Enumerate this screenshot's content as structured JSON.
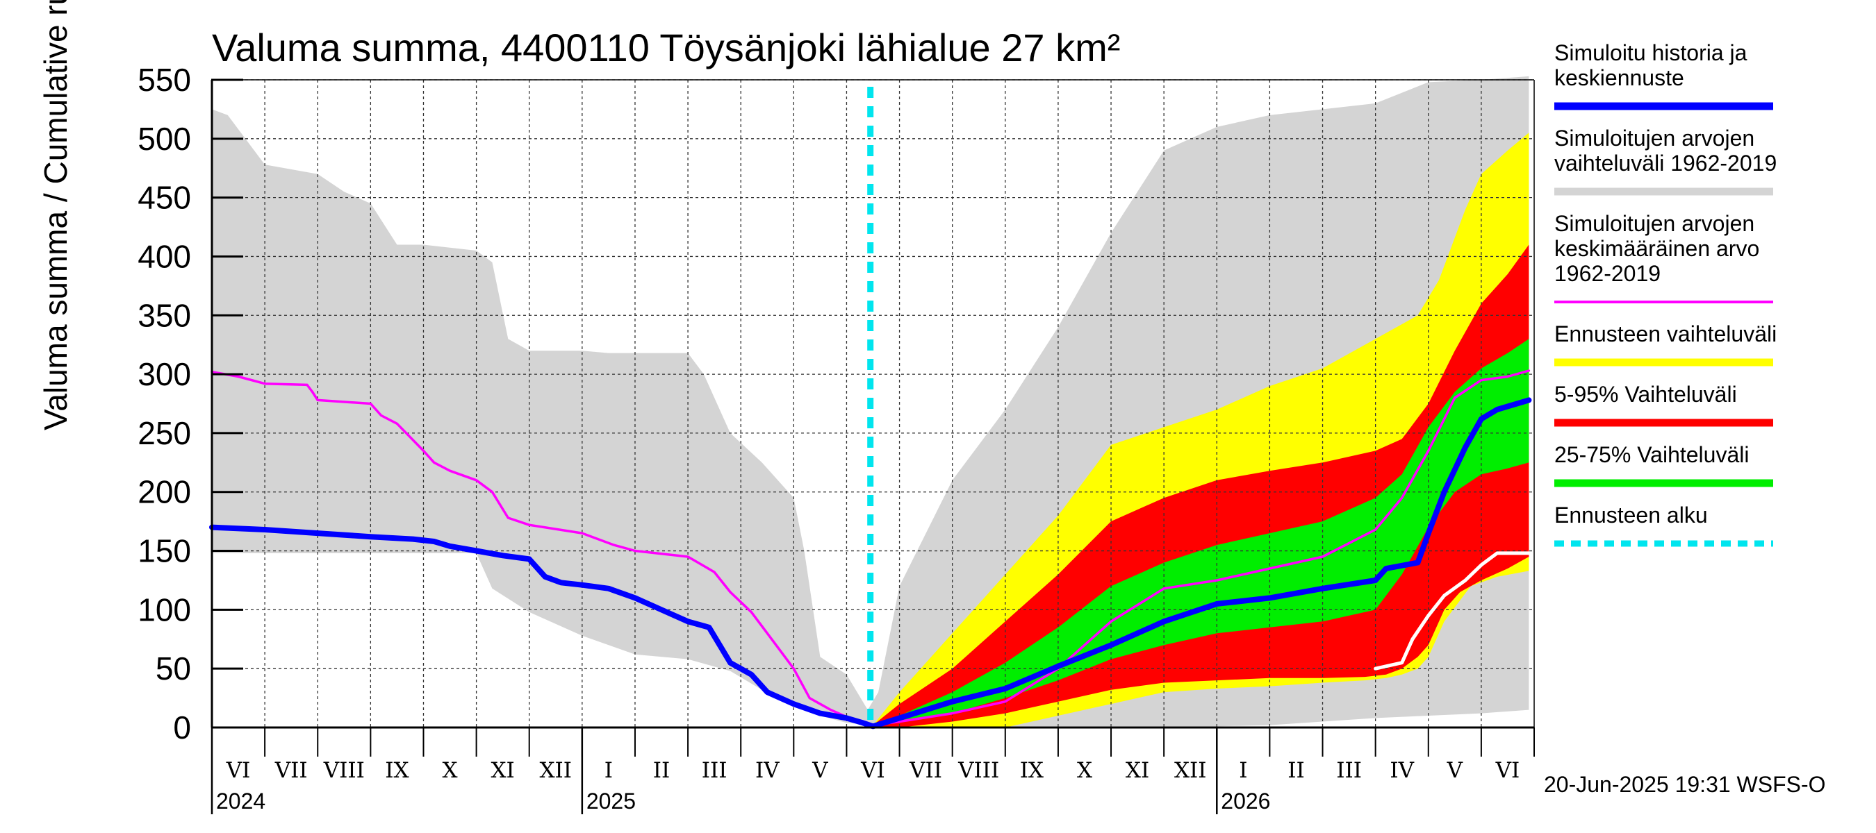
{
  "chart_data": {
    "type": "area",
    "title": "Valuma summa, 4400110 Töysänjoki lähialue 27 km²",
    "ylabel": "Valuma summa / Cumulative runoff    mm",
    "ylim": [
      0,
      550
    ],
    "yticks": [
      0,
      50,
      100,
      150,
      200,
      250,
      300,
      350,
      400,
      450,
      500,
      550
    ],
    "grid": true,
    "months": [
      "VI",
      "VII",
      "VIII",
      "IX",
      "X",
      "XI",
      "XII",
      "I",
      "II",
      "III",
      "IV",
      "V",
      "VI",
      "VII",
      "VIII",
      "IX",
      "X",
      "XI",
      "XII",
      "I",
      "II",
      "III",
      "IV",
      "V",
      "VI"
    ],
    "years": [
      {
        "label": "2024",
        "month_index": 0
      },
      {
        "label": "2025",
        "month_index": 7
      },
      {
        "label": "2026",
        "month_index": 19
      }
    ],
    "forecast_start": 12.45,
    "series": [
      {
        "name": "Simuloitujen arvojen vaihteluväli 1962-2019",
        "kind": "band",
        "color": "#d4d4d4",
        "upper": [
          [
            0,
            525
          ],
          [
            0.3,
            520
          ],
          [
            1,
            478
          ],
          [
            2,
            470
          ],
          [
            2.5,
            455
          ],
          [
            3,
            445
          ],
          [
            3.5,
            410
          ],
          [
            4,
            410
          ],
          [
            5,
            405
          ],
          [
            5.3,
            395
          ],
          [
            5.6,
            330
          ],
          [
            6,
            320
          ],
          [
            7,
            320
          ],
          [
            7.5,
            318
          ],
          [
            8,
            318
          ],
          [
            9,
            318
          ],
          [
            9.3,
            300
          ],
          [
            9.8,
            250
          ],
          [
            10.4,
            225
          ],
          [
            11,
            195
          ],
          [
            11.2,
            150
          ],
          [
            11.5,
            60
          ],
          [
            12,
            45
          ],
          [
            12.4,
            15
          ],
          [
            12.6,
            30
          ],
          [
            13,
            120
          ],
          [
            14,
            210
          ],
          [
            15,
            270
          ],
          [
            16,
            340
          ],
          [
            17,
            420
          ],
          [
            18,
            490
          ],
          [
            19,
            510
          ],
          [
            20,
            520
          ],
          [
            21,
            525
          ],
          [
            22,
            530
          ],
          [
            23,
            548
          ],
          [
            24,
            550
          ],
          [
            24.9,
            553
          ]
        ],
        "lower": [
          [
            0,
            148
          ],
          [
            1,
            148
          ],
          [
            2,
            148
          ],
          [
            3,
            148
          ],
          [
            4,
            148
          ],
          [
            5,
            148
          ],
          [
            5.3,
            118
          ],
          [
            6,
            98
          ],
          [
            7,
            78
          ],
          [
            8,
            62
          ],
          [
            9,
            58
          ],
          [
            9.8,
            48
          ],
          [
            10.4,
            32
          ],
          [
            11,
            18
          ],
          [
            11.5,
            10
          ],
          [
            12,
            4
          ],
          [
            12.5,
            2
          ],
          [
            13,
            1
          ],
          [
            14,
            1
          ],
          [
            15,
            1
          ],
          [
            16,
            1
          ],
          [
            17,
            1
          ],
          [
            18,
            1
          ],
          [
            19,
            1
          ],
          [
            20,
            2
          ],
          [
            21,
            5
          ],
          [
            22,
            8
          ],
          [
            23,
            10
          ],
          [
            24,
            12
          ],
          [
            24.9,
            15
          ]
        ]
      },
      {
        "name": "Ennusteen vaihteluväli",
        "kind": "band",
        "color": "#ffff00",
        "upper": [
          [
            12.5,
            2
          ],
          [
            13,
            30
          ],
          [
            14,
            80
          ],
          [
            15,
            130
          ],
          [
            16,
            180
          ],
          [
            17,
            240
          ],
          [
            18,
            255
          ],
          [
            19,
            270
          ],
          [
            20,
            290
          ],
          [
            21,
            305
          ],
          [
            22,
            330
          ],
          [
            22.8,
            350
          ],
          [
            23.2,
            380
          ],
          [
            23.7,
            440
          ],
          [
            24,
            470
          ],
          [
            24.5,
            490
          ],
          [
            24.9,
            505
          ]
        ],
        "lower": [
          [
            12.5,
            0
          ],
          [
            13,
            0
          ],
          [
            14,
            0
          ],
          [
            15,
            0
          ],
          [
            16,
            10
          ],
          [
            17,
            20
          ],
          [
            18,
            30
          ],
          [
            19,
            33
          ],
          [
            20,
            35
          ],
          [
            21,
            38
          ],
          [
            21.8,
            40
          ],
          [
            22.2,
            42
          ],
          [
            22.5,
            45
          ],
          [
            22.8,
            50
          ],
          [
            23,
            60
          ],
          [
            23.3,
            90
          ],
          [
            23.8,
            120
          ],
          [
            24.3,
            128
          ],
          [
            24.9,
            133
          ]
        ]
      },
      {
        "name": "5-95% Vaihteluväli",
        "kind": "band",
        "color": "#ff0000",
        "upper": [
          [
            12.5,
            2
          ],
          [
            13,
            20
          ],
          [
            14,
            50
          ],
          [
            15,
            90
          ],
          [
            16,
            130
          ],
          [
            17,
            175
          ],
          [
            18,
            195
          ],
          [
            19,
            210
          ],
          [
            20,
            218
          ],
          [
            21,
            225
          ],
          [
            22,
            235
          ],
          [
            22.5,
            245
          ],
          [
            23,
            275
          ],
          [
            23.5,
            320
          ],
          [
            24,
            360
          ],
          [
            24.5,
            385
          ],
          [
            24.9,
            410
          ]
        ],
        "lower": [
          [
            12.5,
            0
          ],
          [
            13,
            0
          ],
          [
            14,
            5
          ],
          [
            15,
            12
          ],
          [
            16,
            22
          ],
          [
            17,
            32
          ],
          [
            18,
            38
          ],
          [
            19,
            40
          ],
          [
            20,
            42
          ],
          [
            21,
            42
          ],
          [
            21.8,
            43
          ],
          [
            22.2,
            45
          ],
          [
            22.5,
            50
          ],
          [
            22.8,
            60
          ],
          [
            23,
            70
          ],
          [
            23.3,
            100
          ],
          [
            23.6,
            115
          ],
          [
            24,
            125
          ],
          [
            24.5,
            135
          ],
          [
            24.9,
            145
          ]
        ]
      },
      {
        "name": "25-75% Vaihteluväli",
        "kind": "band",
        "color": "#00ee00",
        "upper": [
          [
            12.5,
            1
          ],
          [
            13,
            10
          ],
          [
            14,
            30
          ],
          [
            15,
            55
          ],
          [
            16,
            85
          ],
          [
            17,
            120
          ],
          [
            18,
            140
          ],
          [
            19,
            155
          ],
          [
            20,
            165
          ],
          [
            21,
            175
          ],
          [
            22,
            195
          ],
          [
            22.5,
            215
          ],
          [
            23,
            255
          ],
          [
            23.5,
            285
          ],
          [
            24,
            305
          ],
          [
            24.5,
            318
          ],
          [
            24.9,
            330
          ]
        ],
        "lower": [
          [
            12.5,
            0
          ],
          [
            13,
            5
          ],
          [
            14,
            12
          ],
          [
            15,
            25
          ],
          [
            16,
            40
          ],
          [
            17,
            58
          ],
          [
            18,
            70
          ],
          [
            19,
            80
          ],
          [
            20,
            85
          ],
          [
            21,
            90
          ],
          [
            22,
            100
          ],
          [
            22.5,
            130
          ],
          [
            23,
            170
          ],
          [
            23.5,
            200
          ],
          [
            24,
            215
          ],
          [
            24.5,
            220
          ],
          [
            24.9,
            225
          ]
        ]
      },
      {
        "name": "Simuloitujen arvojen keskimääräinen arvo 1962-2019",
        "kind": "line",
        "color": "#ff00ff",
        "width": 3.5,
        "points": [
          [
            0,
            302
          ],
          [
            0.5,
            298
          ],
          [
            1,
            292
          ],
          [
            1.8,
            291
          ],
          [
            1.9,
            285
          ],
          [
            2,
            278
          ],
          [
            3,
            275
          ],
          [
            3.2,
            265
          ],
          [
            3.5,
            258
          ],
          [
            4,
            235
          ],
          [
            4.2,
            225
          ],
          [
            4.5,
            218
          ],
          [
            5,
            210
          ],
          [
            5.3,
            200
          ],
          [
            5.6,
            178
          ],
          [
            6,
            172
          ],
          [
            7,
            165
          ],
          [
            7.6,
            155
          ],
          [
            8,
            150
          ],
          [
            9,
            145
          ],
          [
            9.5,
            132
          ],
          [
            9.8,
            115
          ],
          [
            10.2,
            98
          ],
          [
            10.5,
            80
          ],
          [
            11,
            50
          ],
          [
            11.3,
            25
          ],
          [
            11.7,
            15
          ],
          [
            12.2,
            5
          ],
          [
            12.5,
            2
          ],
          [
            13,
            5
          ],
          [
            14,
            12
          ],
          [
            15,
            22
          ],
          [
            16,
            50
          ],
          [
            17,
            90
          ],
          [
            18,
            118
          ],
          [
            19,
            125
          ],
          [
            20,
            135
          ],
          [
            21,
            145
          ],
          [
            22,
            168
          ],
          [
            22.5,
            195
          ],
          [
            23,
            235
          ],
          [
            23.5,
            280
          ],
          [
            24,
            295
          ],
          [
            24.5,
            298
          ],
          [
            24.9,
            303
          ]
        ]
      },
      {
        "name": "Simuloitu historia ja keskiennuste",
        "kind": "line",
        "color": "#0000ff",
        "width": 8,
        "points": [
          [
            0,
            170
          ],
          [
            1,
            168
          ],
          [
            2,
            165
          ],
          [
            3,
            162
          ],
          [
            3.8,
            160
          ],
          [
            4.2,
            158
          ],
          [
            4.5,
            154
          ],
          [
            5,
            150
          ],
          [
            5.5,
            146
          ],
          [
            6,
            143
          ],
          [
            6.3,
            128
          ],
          [
            6.6,
            123
          ],
          [
            7,
            121
          ],
          [
            7.5,
            118
          ],
          [
            8,
            110
          ],
          [
            8.5,
            100
          ],
          [
            9,
            90
          ],
          [
            9.4,
            85
          ],
          [
            9.6,
            70
          ],
          [
            9.8,
            55
          ],
          [
            10.2,
            45
          ],
          [
            10.5,
            30
          ],
          [
            11,
            20
          ],
          [
            11.5,
            12
          ],
          [
            12,
            8
          ],
          [
            12.3,
            4
          ],
          [
            12.5,
            1
          ],
          [
            13,
            8
          ],
          [
            14,
            22
          ],
          [
            15,
            33
          ],
          [
            16,
            52
          ],
          [
            17,
            70
          ],
          [
            18,
            90
          ],
          [
            19,
            105
          ],
          [
            20,
            110
          ],
          [
            21,
            118
          ],
          [
            22,
            125
          ],
          [
            22.2,
            135
          ],
          [
            22.8,
            140
          ],
          [
            23,
            165
          ],
          [
            23.3,
            200
          ],
          [
            23.7,
            238
          ],
          [
            24,
            262
          ],
          [
            24.3,
            270
          ],
          [
            24.9,
            278
          ]
        ]
      },
      {
        "name": "white",
        "kind": "line",
        "color": "#ffffff",
        "width": 5,
        "points": [
          [
            22,
            50
          ],
          [
            22.5,
            55
          ],
          [
            22.7,
            75
          ],
          [
            23,
            95
          ],
          [
            23.3,
            112
          ],
          [
            23.7,
            125
          ],
          [
            24,
            138
          ],
          [
            24.3,
            148
          ],
          [
            24.9,
            148
          ]
        ]
      }
    ],
    "legend": [
      {
        "lines": [
          "Simuloitu historia ja",
          "keskiennuste"
        ],
        "color": "#0000ff",
        "style": "solid"
      },
      {
        "lines": [
          "Simuloitujen arvojen",
          "vaihteluväli 1962-2019"
        ],
        "color": "#d4d4d4",
        "style": "solid"
      },
      {
        "lines": [
          "Simuloitujen arvojen",
          "keskimääräinen arvo",
          "   1962-2019"
        ],
        "color": "#ff00ff",
        "style": "thin"
      },
      {
        "lines": [
          "Ennusteen vaihteluväli"
        ],
        "color": "#ffff00",
        "style": "solid"
      },
      {
        "lines": [
          "5-95% Vaihteluväli"
        ],
        "color": "#ff0000",
        "style": "solid"
      },
      {
        "lines": [
          "25-75% Vaihteluväli"
        ],
        "color": "#00ee00",
        "style": "solid"
      },
      {
        "lines": [
          "Ennusteen alku"
        ],
        "color": "#00e5ee",
        "style": "dashed"
      }
    ],
    "footer": "20-Jun-2025 19:31 WSFS-O"
  }
}
